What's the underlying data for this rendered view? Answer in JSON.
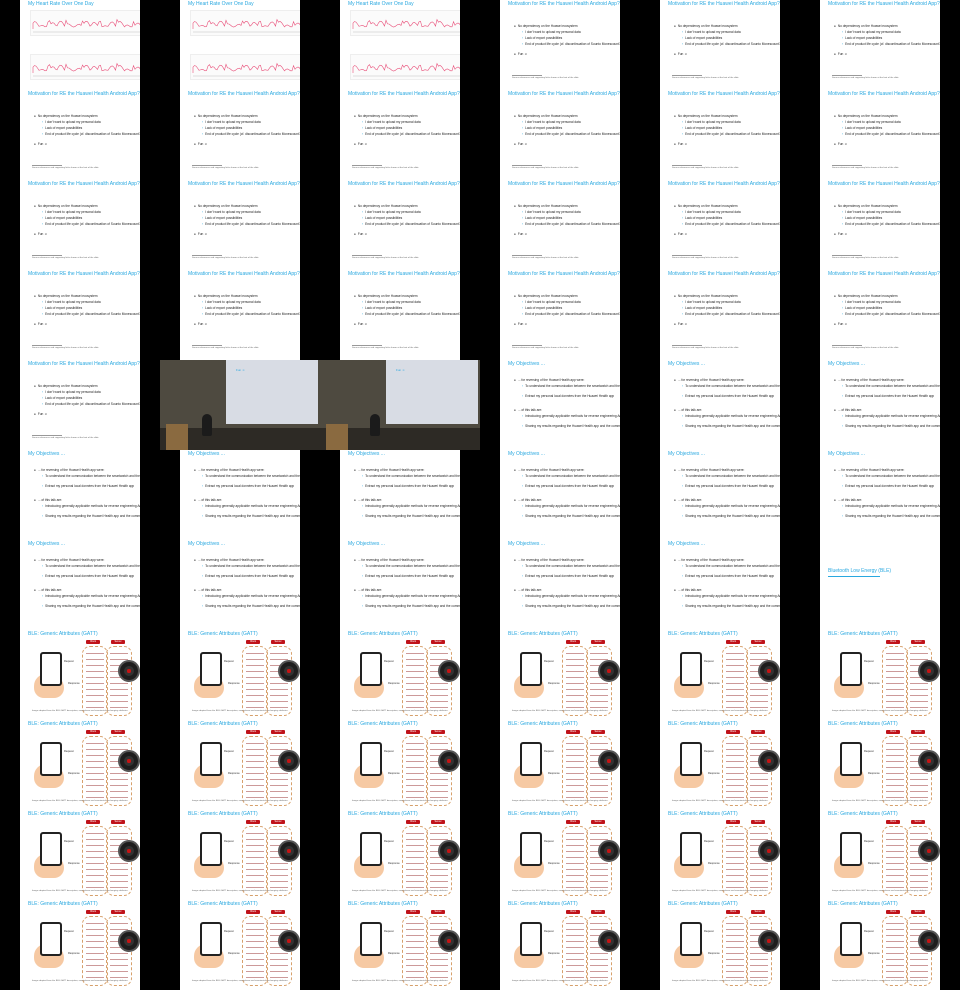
{
  "grid": {
    "columns": 6,
    "rows": 11
  },
  "slides": {
    "heart_rate": {
      "title": "My Heart Rate Over One Day",
      "colors": {
        "line": "#e9507a"
      }
    },
    "motivation": {
      "title": "Motivation for RE the Huawei Health Android App?",
      "bullet_1": "No dependency on the Huawei ecosystem",
      "sub_1": "I don't want to upload my personal data",
      "sub_2": "Lack of export possibilities",
      "sub_3": "End of product life cycle (cf. discontinuation of Suunto Movescount?)",
      "bullet_2": "Fun ☺",
      "footnote": "Source references and supporting links shown at the foot of the slide."
    },
    "objectives": {
      "title": "My Objectives ...",
      "bullet_1": "... for reversing of the Huawei Health app were:",
      "sub_1": "To understand the communication between the smartwatch and the watch",
      "sub_2": "Extract my personal local données from the Huawei Health app",
      "bullet_2": "... of this talk are:",
      "sub_3": "Introducing generally applicable methods for reverse engineering Android applications",
      "sub_4": "Sharing my results regarding the Huawei Health app and the communication protocol"
    },
    "ble_section": {
      "title": "Bluetooth Low Energy (BLE)"
    },
    "gatt": {
      "title": "BLE: Generic Attributes (GATT)",
      "label_client": "Client",
      "label_server": "Server",
      "label_request": "Request",
      "label_response": "Response",
      "footnote": "Image adapted from the BLE GATT description; smartphone and smartwatch exchanging attributes."
    },
    "photo": {
      "slide_text": "Fun ☺"
    }
  },
  "colors": {
    "accent": "#29a8e0",
    "background": "#000000",
    "badge": "#c0131a"
  }
}
